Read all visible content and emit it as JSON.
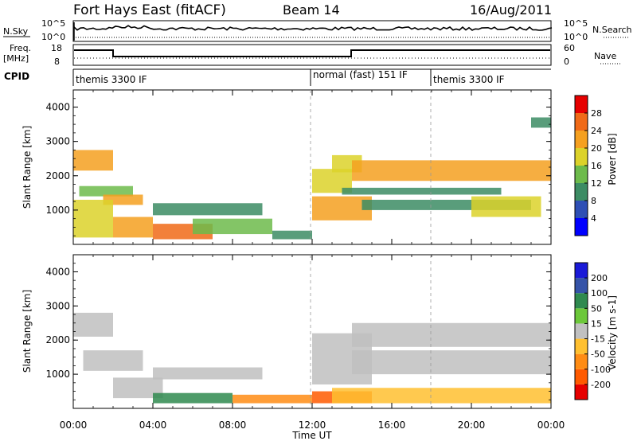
{
  "header": {
    "station": "Fort Hays East (fitACF)",
    "beam": "Beam 14",
    "date": "16/Aug/2011"
  },
  "noise_panel": {
    "left_label": "N.Sky",
    "right_label": "N.Search",
    "left_ticks": [
      "10^5",
      "10^0"
    ],
    "right_ticks": [
      "10^5",
      "10^0"
    ]
  },
  "freq_panel": {
    "left_label_1": "Freq.",
    "left_label_2": "[MHz]",
    "right_label": "Nave",
    "left_ticks": [
      "18",
      "8"
    ],
    "right_ticks": [
      "60",
      "0"
    ]
  },
  "cpid": {
    "label": "CPID",
    "segments": [
      {
        "start_hour": 0,
        "text": "themis 3300 IF"
      },
      {
        "start_hour": 12,
        "text": "normal (fast) 151 IF"
      },
      {
        "start_hour": 18,
        "text": "themis 3300 IF"
      }
    ]
  },
  "power_panel": {
    "ylabel": "Slant Range [km]",
    "yticks": [
      "1000",
      "2000",
      "3000",
      "4000"
    ],
    "colorbar_label": "Power [dB]",
    "colorbar_ticks": [
      "4",
      "8",
      "12",
      "16",
      "20",
      "24",
      "28"
    ],
    "colors": [
      "#0000ff",
      "#2e4fb5",
      "#3c8c64",
      "#6dbb4b",
      "#dcd22a",
      "#f5a020",
      "#f06a18",
      "#e60000"
    ]
  },
  "velocity_panel": {
    "ylabel": "Slant Range [km]",
    "yticks": [
      "1000",
      "2000",
      "3000",
      "4000"
    ],
    "colorbar_label": "Velocity [m s-1]",
    "colorbar_ticks": [
      "200",
      "100",
      "50",
      "15",
      "-15",
      "-50",
      "-100",
      "-200"
    ],
    "colors": [
      "#1a1ad8",
      "#3553a8",
      "#2f8a4f",
      "#6cc83a",
      "#c0c0c0",
      "#ffc030",
      "#ff8c14",
      "#ff5a00",
      "#e60000"
    ]
  },
  "xaxis": {
    "ticks": [
      "00:00",
      "04:00",
      "08:00",
      "12:00",
      "16:00",
      "20:00",
      "00:00"
    ],
    "label": "Time UT"
  },
  "chart_data": {
    "type": "heatmap",
    "x_range_hours": [
      0,
      24
    ],
    "y_range_km": [
      0,
      4500
    ],
    "gridlines_hours": [
      12,
      18
    ],
    "power_bands": [
      {
        "t0": 0.0,
        "t1": 2.0,
        "r0": 2150,
        "r1": 2750,
        "power_db": 20
      },
      {
        "t0": 0.3,
        "t1": 3.0,
        "r0": 1400,
        "r1": 1700,
        "power_db": 14
      },
      {
        "t0": 1.5,
        "t1": 3.5,
        "r0": 1150,
        "r1": 1450,
        "power_db": 22
      },
      {
        "t0": 0.0,
        "t1": 2.0,
        "r0": 200,
        "r1": 1300,
        "power_db": 18
      },
      {
        "t0": 2.0,
        "t1": 4.0,
        "r0": 200,
        "r1": 800,
        "power_db": 20
      },
      {
        "t0": 4.0,
        "t1": 7.0,
        "r0": 150,
        "r1": 600,
        "power_db": 24
      },
      {
        "t0": 4.0,
        "t1": 9.5,
        "r0": 850,
        "r1": 1200,
        "power_db": 8
      },
      {
        "t0": 6.0,
        "t1": 10.0,
        "r0": 300,
        "r1": 750,
        "power_db": 12
      },
      {
        "t0": 10.0,
        "t1": 12.0,
        "r0": 150,
        "r1": 400,
        "power_db": 8
      },
      {
        "t0": 12.0,
        "t1": 15.0,
        "r0": 700,
        "r1": 1400,
        "power_db": 22
      },
      {
        "t0": 12.0,
        "t1": 14.0,
        "r0": 1500,
        "r1": 2200,
        "power_db": 18
      },
      {
        "t0": 13.0,
        "t1": 14.5,
        "r0": 2100,
        "r1": 2600,
        "power_db": 16
      },
      {
        "t0": 14.0,
        "t1": 24.0,
        "r0": 1850,
        "r1": 2450,
        "power_db": 20
      },
      {
        "t0": 13.5,
        "t1": 21.5,
        "r0": 1450,
        "r1": 1650,
        "power_db": 8
      },
      {
        "t0": 14.5,
        "t1": 23.0,
        "r0": 1000,
        "r1": 1300,
        "power_db": 8
      },
      {
        "t0": 20.0,
        "t1": 23.5,
        "r0": 800,
        "r1": 1400,
        "power_db": 16
      },
      {
        "t0": 23.0,
        "t1": 24.0,
        "r0": 3400,
        "r1": 3700,
        "power_db": 8
      }
    ],
    "velocity_bands": [
      {
        "t0": 0.0,
        "t1": 2.0,
        "r0": 2100,
        "r1": 2800,
        "velocity": 0
      },
      {
        "t0": 0.5,
        "t1": 3.5,
        "r0": 1100,
        "r1": 1700,
        "velocity": 0
      },
      {
        "t0": 2.0,
        "t1": 4.5,
        "r0": 300,
        "r1": 900,
        "velocity": 0
      },
      {
        "t0": 4.0,
        "t1": 8.0,
        "r0": 150,
        "r1": 450,
        "velocity": 40
      },
      {
        "t0": 4.0,
        "t1": 9.5,
        "r0": 850,
        "r1": 1200,
        "velocity": 0
      },
      {
        "t0": 8.0,
        "t1": 12.0,
        "r0": 150,
        "r1": 400,
        "velocity": -40
      },
      {
        "t0": 12.0,
        "t1": 15.0,
        "r0": 150,
        "r1": 500,
        "velocity": -80
      },
      {
        "t0": 12.0,
        "t1": 15.0,
        "r0": 700,
        "r1": 2200,
        "velocity": 0
      },
      {
        "t0": 14.0,
        "t1": 24.0,
        "r0": 1800,
        "r1": 2500,
        "velocity": 0
      },
      {
        "t0": 14.0,
        "t1": 24.0,
        "r0": 1000,
        "r1": 1700,
        "velocity": 0
      },
      {
        "t0": 13.0,
        "t1": 24.0,
        "r0": 150,
        "r1": 600,
        "velocity": -30
      }
    ]
  }
}
